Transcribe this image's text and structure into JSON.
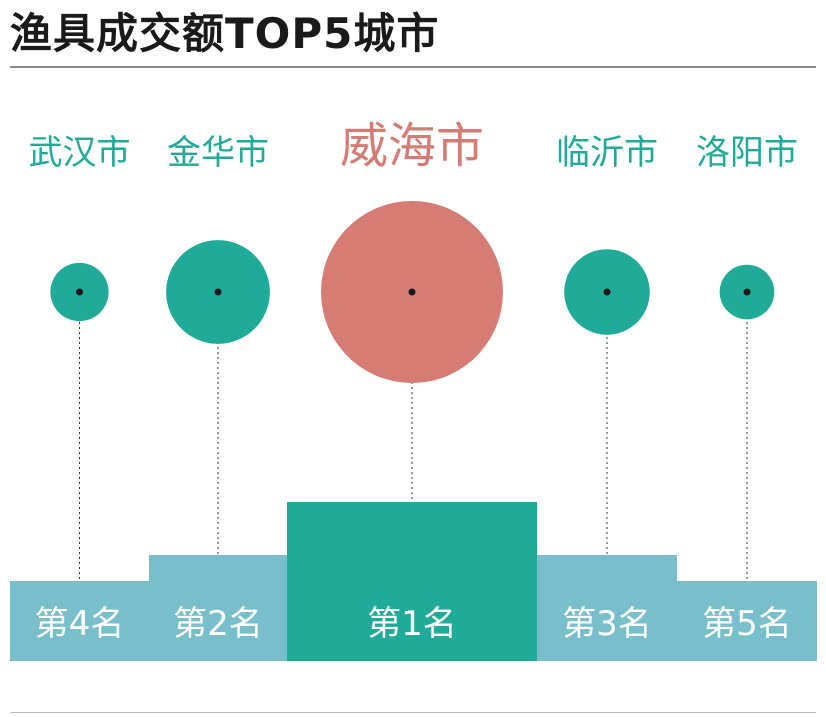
{
  "title": "渔具成交额TOP5城市",
  "colors": {
    "teal": "#1fab98",
    "light_blue": "#79bfcb",
    "salmon": "#d67c75",
    "rank_text": "#ffffff",
    "title": "#1a1a1a"
  },
  "chart_data": {
    "type": "bubble-podium",
    "title": "渔具成交额TOP5城市",
    "items": [
      {
        "city": "武汉市",
        "rank": 4,
        "rank_label": "第4名",
        "relative_size": 0.32,
        "highlight": false
      },
      {
        "city": "金华市",
        "rank": 2,
        "rank_label": "第2名",
        "relative_size": 0.57,
        "highlight": false
      },
      {
        "city": "威海市",
        "rank": 1,
        "rank_label": "第1名",
        "relative_size": 1.0,
        "highlight": true
      },
      {
        "city": "临沂市",
        "rank": 3,
        "rank_label": "第3名",
        "relative_size": 0.47,
        "highlight": false
      },
      {
        "city": "洛阳市",
        "rank": 5,
        "rank_label": "第5名",
        "relative_size": 0.3,
        "highlight": false
      }
    ]
  }
}
